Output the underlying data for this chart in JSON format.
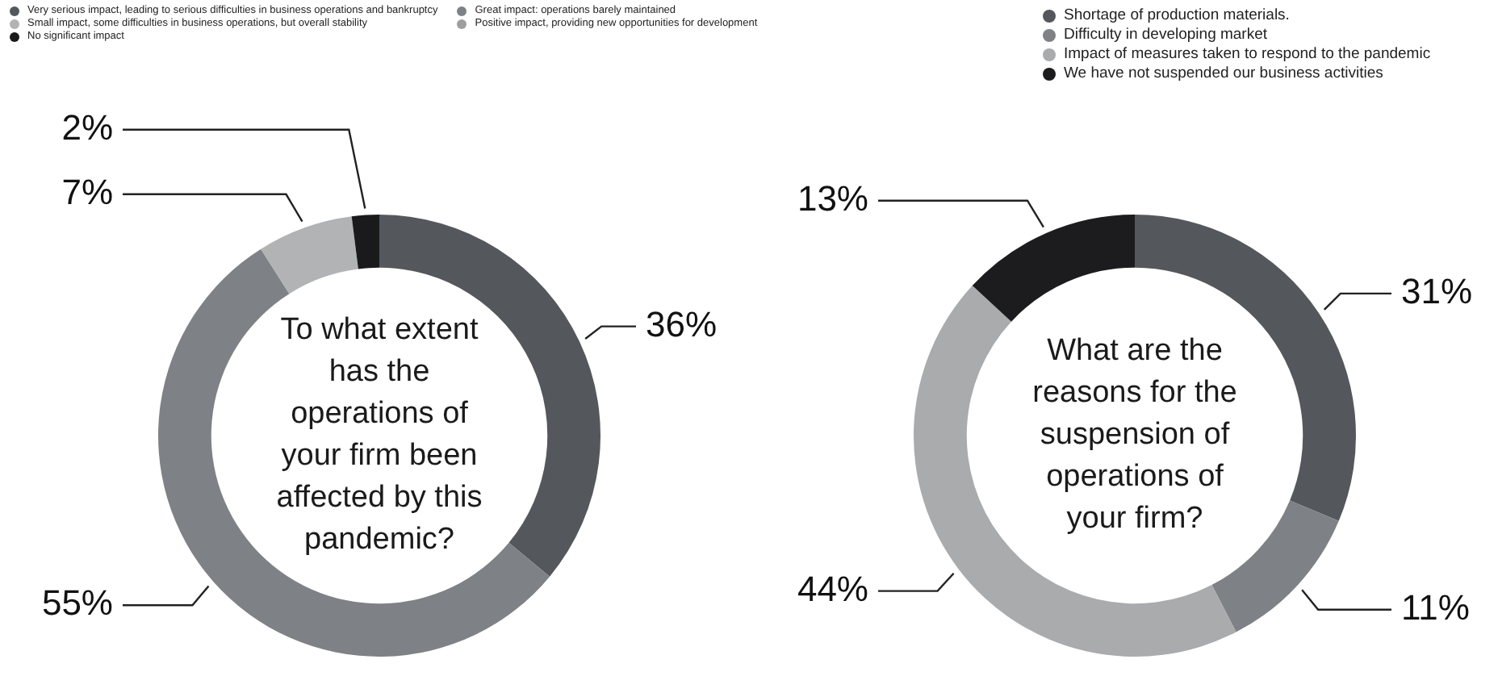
{
  "chart_data": [
    {
      "type": "donut",
      "title": "To what extent has the operations of your firm been affected by this pandemic?",
      "categories": [
        "Very serious impact, leading to serious difficulties in business operations and bankruptcy",
        "Great impact: operations barely maintained",
        "Small impact, some difficulties in business operations, but overall stability",
        "Positive impact, providing new opportunities for development",
        "No significant impact"
      ],
      "values": [
        36,
        55,
        7,
        0,
        2
      ],
      "colors": [
        "#54575b",
        "#7e8185",
        "#b1b3b5",
        "#9c9ea0",
        "#1a1a1c"
      ],
      "value_labels": [
        "36%",
        "55%",
        "7%",
        null,
        "2%"
      ],
      "legend": "top left"
    },
    {
      "type": "donut",
      "title": "What are the reasons for the suspension of operations of your firm?",
      "categories": [
        "Shortage of production materials.",
        "Difficulty in developing market",
        "Impact of measures taken to respond to the pandemic",
        "We have not suspended our business activities"
      ],
      "values": [
        31,
        11,
        44,
        13
      ],
      "colors": [
        "#54575b",
        "#7e8185",
        "#a9abad",
        "#1c1c1e"
      ],
      "value_labels": [
        "31%",
        "11%",
        "44%",
        "13%"
      ],
      "legend": "top right"
    }
  ]
}
